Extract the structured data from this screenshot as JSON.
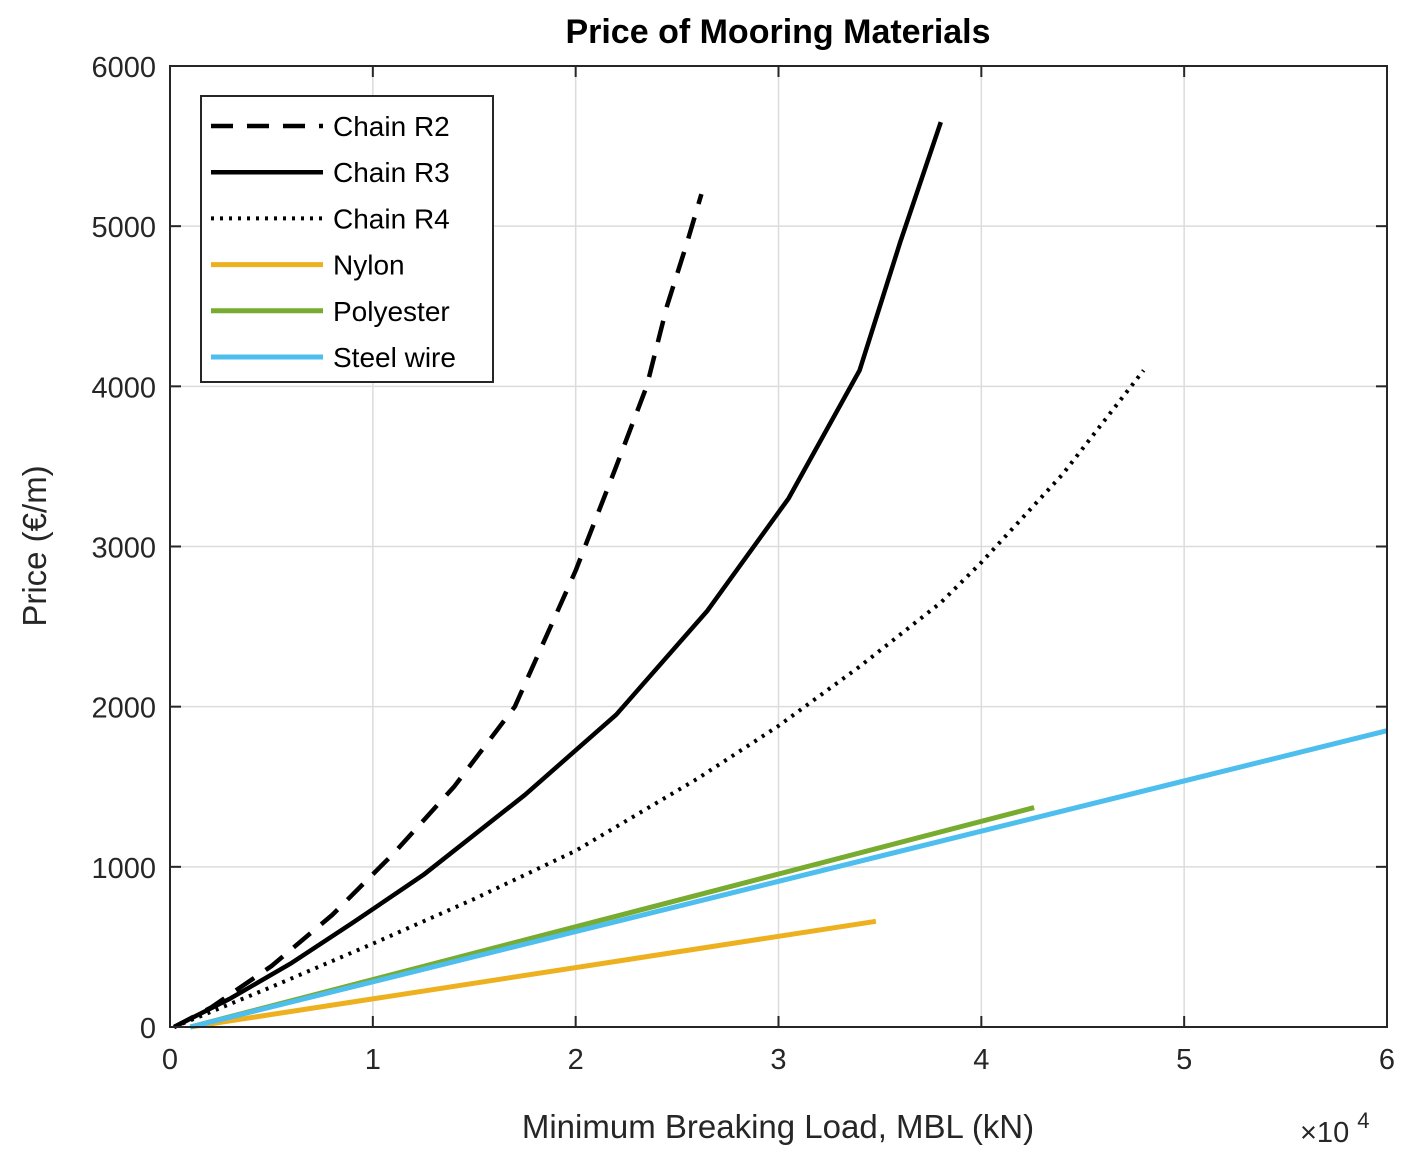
{
  "chart_data": {
    "type": "line",
    "title": "Price of Mooring Materials",
    "xlabel": "Minimum Breaking Load, MBL (kN)",
    "ylabel": "Price (€/m)",
    "x_multiplier_base": "×10",
    "x_multiplier_exp": "4",
    "xlim": [
      0,
      6
    ],
    "ylim": [
      0,
      6000
    ],
    "x_ticks": [
      0,
      1,
      2,
      3,
      4,
      5,
      6
    ],
    "x_tick_labels": [
      "0",
      "1",
      "2",
      "3",
      "4",
      "5",
      "6"
    ],
    "y_ticks": [
      0,
      1000,
      2000,
      3000,
      4000,
      5000,
      6000
    ],
    "y_tick_labels": [
      "0",
      "1000",
      "2000",
      "3000",
      "4000",
      "5000",
      "6000"
    ],
    "grid": true,
    "legend_position": "top-left",
    "series": [
      {
        "name": "Chain R2",
        "color": "#000000",
        "style": "dashed",
        "x": [
          0.02,
          0.2,
          0.5,
          0.8,
          1.1,
          1.4,
          1.7,
          2.0,
          2.2,
          2.35,
          2.45,
          2.55,
          2.62
        ],
        "y": [
          0,
          120,
          380,
          700,
          1080,
          1500,
          2000,
          2850,
          3500,
          4000,
          4500,
          4900,
          5200
        ]
      },
      {
        "name": "Chain R3",
        "color": "#000000",
        "style": "solid",
        "x": [
          0.02,
          0.3,
          0.6,
          0.9,
          1.25,
          1.75,
          2.2,
          2.65,
          3.05,
          3.4,
          3.6,
          3.8
        ],
        "y": [
          0,
          180,
          400,
          650,
          950,
          1450,
          1950,
          2600,
          3300,
          4100,
          4900,
          5650
        ]
      },
      {
        "name": "Chain R4",
        "color": "#000000",
        "style": "dotted",
        "x": [
          0.02,
          0.5,
          1.0,
          1.5,
          2.0,
          2.6,
          3.0,
          3.4,
          3.8,
          4.0,
          4.4,
          4.8
        ],
        "y": [
          0,
          250,
          520,
          800,
          1100,
          1550,
          1880,
          2250,
          2650,
          2900,
          3450,
          4100
        ]
      },
      {
        "name": "Nylon",
        "color": "#edb120",
        "style": "solid",
        "x": [
          0.1,
          3.48
        ],
        "y": [
          0,
          660
        ]
      },
      {
        "name": "Polyester",
        "color": "#77ac30",
        "style": "solid",
        "x": [
          0.1,
          4.26
        ],
        "y": [
          0,
          1370
        ]
      },
      {
        "name": "Steel wire",
        "color": "#4dbeee",
        "style": "solid",
        "x": [
          0.1,
          6.0
        ],
        "y": [
          0,
          1850
        ]
      }
    ]
  }
}
